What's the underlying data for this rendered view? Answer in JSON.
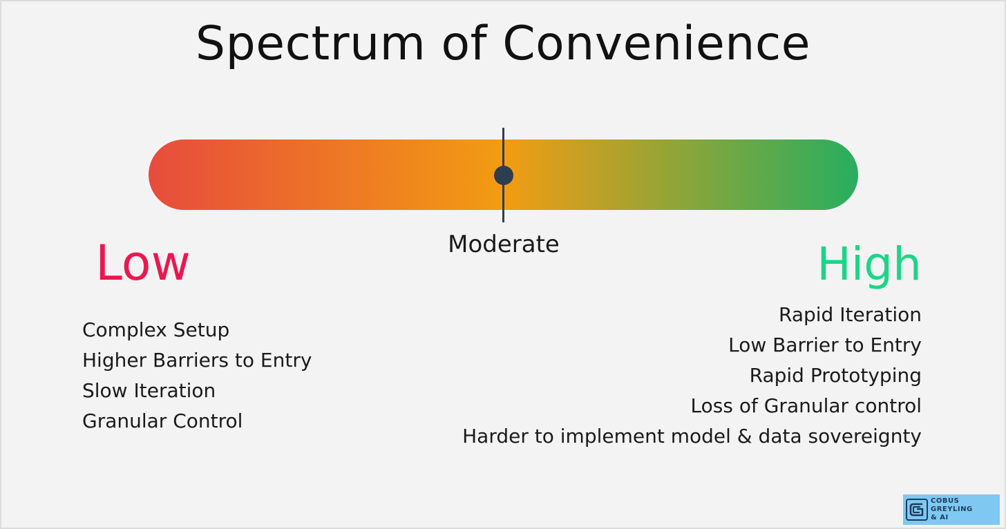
{
  "title": "Spectrum of Convenience",
  "spectrum": {
    "marker_label": "Moderate",
    "marker_position": 0.5,
    "gradient_colors": [
      "#e74c3c",
      "#f39c12",
      "#27ae60"
    ]
  },
  "low": {
    "label": "Low",
    "color": "#e8194f",
    "items": [
      "Complex Setup",
      "Higher Barriers to Entry",
      "Slow Iteration",
      "Granular Control"
    ]
  },
  "high": {
    "label": "High",
    "color": "#1ed488",
    "items": [
      "Rapid Iteration",
      "Low Barrier to Entry",
      "Rapid Prototyping",
      "Loss of Granular control",
      "Harder to implement model & data sovereignty"
    ]
  },
  "logo": {
    "line1": "COBUS GREYLING",
    "line2": "& AI",
    "icon": "cg-logo-icon",
    "background": "#7fc8f2"
  }
}
